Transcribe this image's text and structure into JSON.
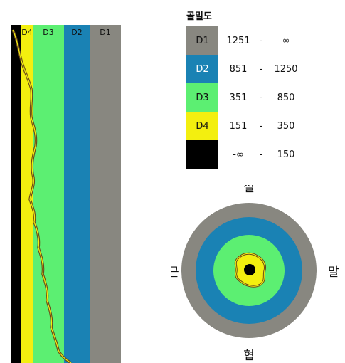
{
  "legend": {
    "title": "골밀도",
    "rows": [
      {
        "label": "D1",
        "min": "1251",
        "dash": "-",
        "max": "∞",
        "color": "#888780",
        "text_color": "#111111"
      },
      {
        "label": "D2",
        "min": "851",
        "dash": "-",
        "max": "1250",
        "color": "#1a82b4",
        "text_color": "#ffffff"
      },
      {
        "label": "D3",
        "min": "351",
        "dash": "-",
        "max": "850",
        "color": "#5cef72",
        "text_color": "#111111"
      },
      {
        "label": "D4",
        "min": "151",
        "dash": "-",
        "max": "350",
        "color": "#f3ef0f",
        "text_color": "#111111"
      },
      {
        "label": "",
        "min": "-∞",
        "dash": "-",
        "max": "150",
        "color": "#000000",
        "text_color": "#ffffff"
      }
    ]
  },
  "bands": {
    "labels": {
      "d4": "D4",
      "d3": "D3",
      "d2": "D2",
      "d1": "D1"
    }
  },
  "directions": {
    "top": "설",
    "bottom": "협",
    "left": "근",
    "right": "말"
  },
  "colors": {
    "d1": "#888780",
    "d2": "#1a82b4",
    "d3": "#5cef72",
    "d4": "#f3ef0f",
    "black": "#000000",
    "outline": "#6b4a1a"
  }
}
